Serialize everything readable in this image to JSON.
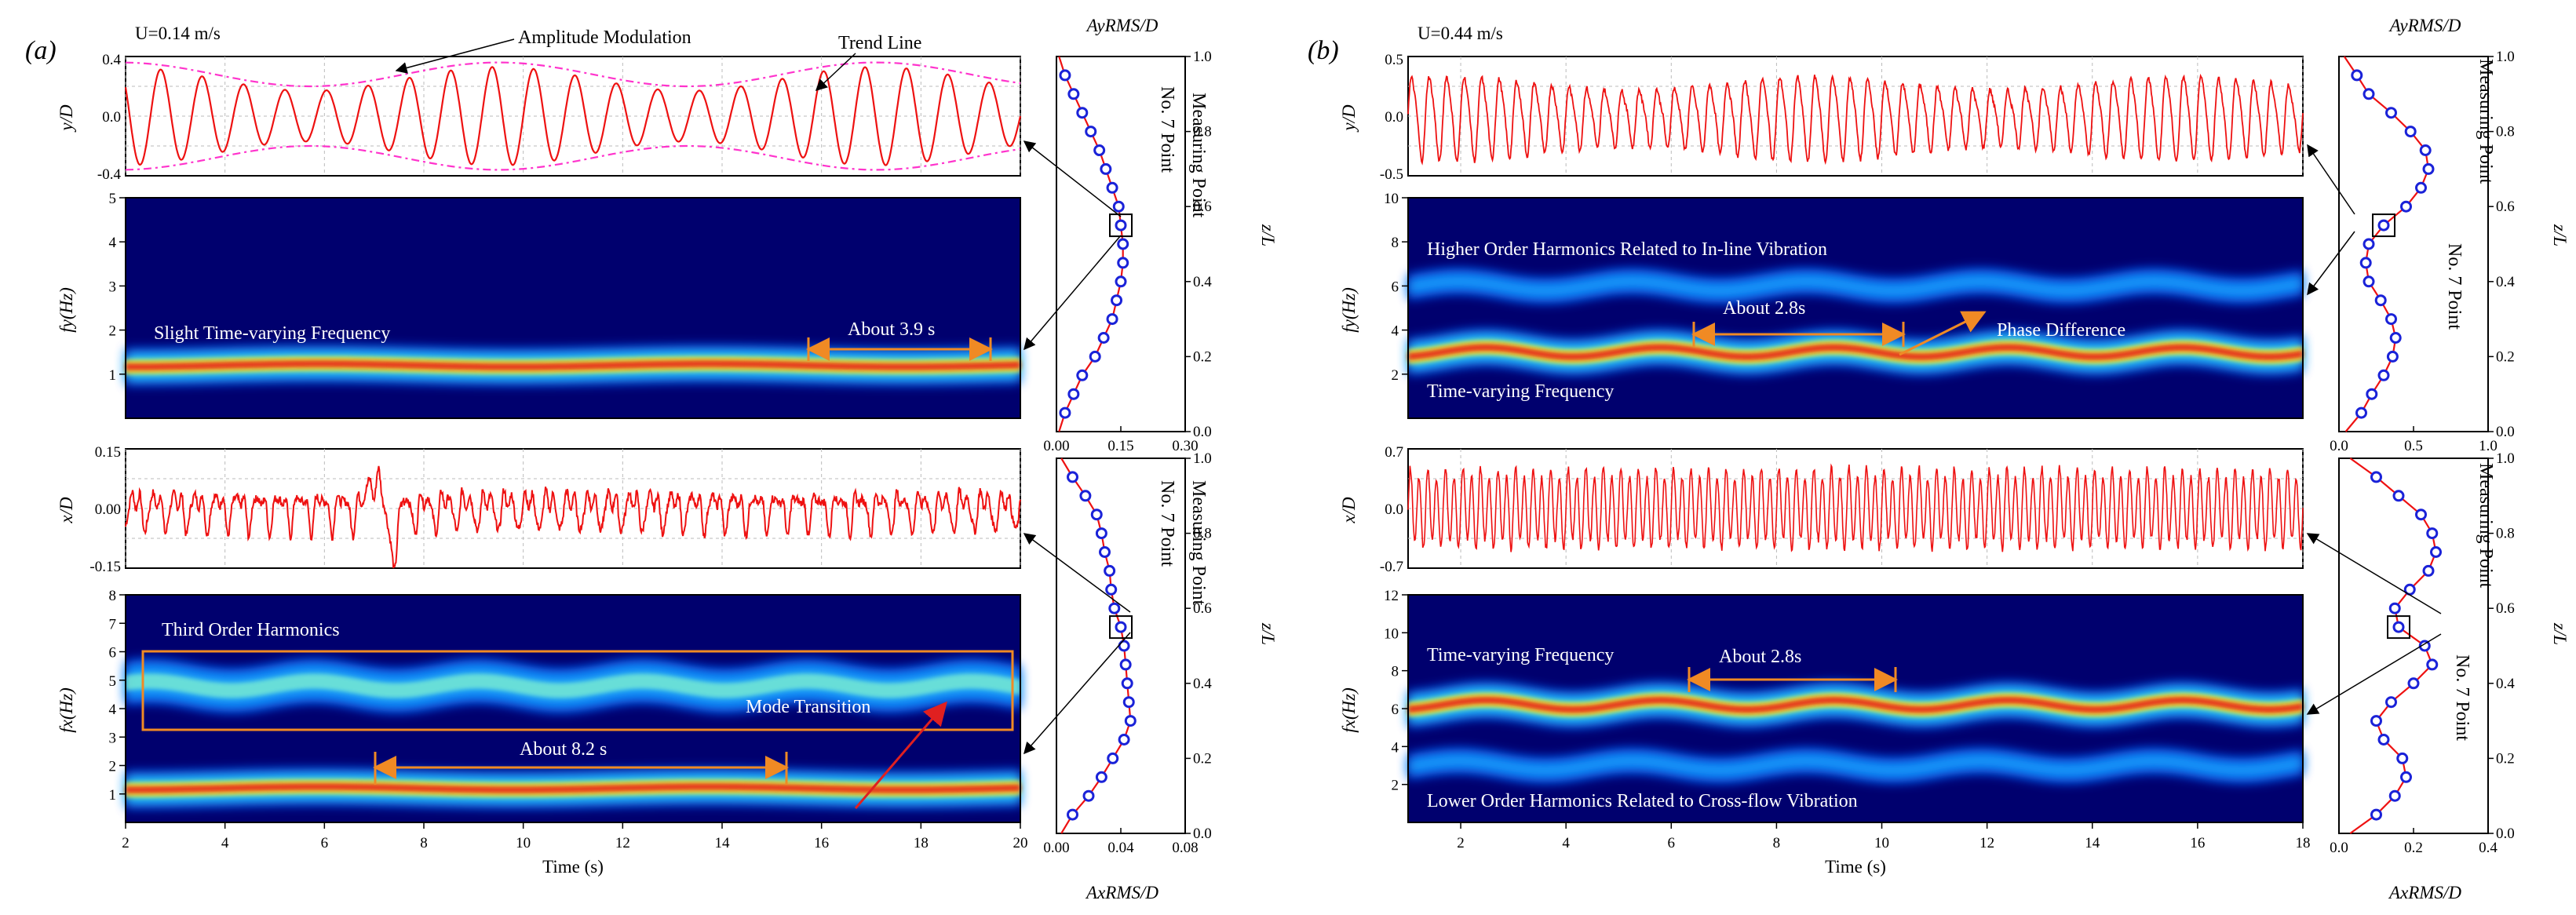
{
  "panels": [
    {
      "label": "(a)",
      "speed": "U=0.14 m/s",
      "time_axis": {
        "label": "Time (s)",
        "min": 2,
        "max": 20,
        "ticks": [
          2,
          4,
          6,
          8,
          10,
          12,
          14,
          16,
          18,
          20
        ]
      },
      "y_signal": {
        "ylabel": "y/D",
        "ylim": [
          -0.4,
          0.4
        ],
        "ticks": [
          "-0.4",
          "0.0",
          "0.4"
        ],
        "freq_hz": 1.2,
        "envelope_min": 0.17,
        "envelope_max": 0.33,
        "envelope_period_s": 7.6
      },
      "fy_map": {
        "ylabel": "fy(Hz)",
        "ylim": [
          0,
          5
        ],
        "ticks": [
          1,
          2,
          3,
          4,
          5
        ],
        "ridges": [
          {
            "freq_hz": 1.2,
            "intensity": "high",
            "time_varying": "slight"
          }
        ]
      },
      "x_signal": {
        "ylabel": "x/D",
        "ylim": [
          -0.15,
          0.15
        ],
        "ticks": [
          "-0.15",
          "0.00",
          "0.15"
        ]
      },
      "fx_map": {
        "ylabel": "fx(Hz)",
        "ylim": [
          0,
          8
        ],
        "ticks": [
          1,
          2,
          3,
          4,
          5,
          6,
          7,
          8
        ],
        "ridges": [
          {
            "freq_hz": 4.8,
            "intensity": "medium",
            "note": "third order harmonics"
          },
          {
            "freq_hz": 1.2,
            "intensity": "high"
          }
        ]
      },
      "profile_y": {
        "title": "AyRMS/D",
        "xlim": [
          0,
          0.3
        ],
        "xticks": [
          "0.00",
          "0.15",
          "0.30"
        ],
        "zlim": [
          0,
          1
        ],
        "zticks": [
          "0.0",
          "0.2",
          "0.4",
          "0.6",
          "0.8",
          "1.0"
        ],
        "zlabel": "z/L",
        "legend": "Measuring Point",
        "point_label": "No. 7 Point",
        "z": [
          0.05,
          0.1,
          0.15,
          0.2,
          0.25,
          0.3,
          0.35,
          0.4,
          0.45,
          0.5,
          0.55,
          0.6,
          0.65,
          0.7,
          0.75,
          0.8,
          0.85,
          0.9,
          0.95
        ],
        "values": [
          0.02,
          0.04,
          0.06,
          0.09,
          0.11,
          0.13,
          0.14,
          0.15,
          0.155,
          0.155,
          0.15,
          0.145,
          0.13,
          0.115,
          0.1,
          0.08,
          0.06,
          0.04,
          0.02
        ]
      },
      "profile_x": {
        "title": "AxRMS/D",
        "xlim": [
          0,
          0.08
        ],
        "xticks": [
          "0.00",
          "0.04",
          "0.08"
        ],
        "zlim": [
          0,
          1
        ],
        "zticks": [
          "0.0",
          "0.2",
          "0.4",
          "0.6",
          "0.8",
          "1.0"
        ],
        "zlabel": "z/L",
        "legend": "Measuring Point",
        "point_label": "No. 7 Point",
        "z": [
          0.05,
          0.1,
          0.15,
          0.2,
          0.25,
          0.3,
          0.35,
          0.4,
          0.45,
          0.5,
          0.55,
          0.6,
          0.65,
          0.7,
          0.75,
          0.8,
          0.85,
          0.9,
          0.95
        ],
        "values": [
          0.01,
          0.02,
          0.028,
          0.035,
          0.042,
          0.046,
          0.045,
          0.044,
          0.043,
          0.042,
          0.04,
          0.036,
          0.034,
          0.033,
          0.03,
          0.028,
          0.025,
          0.018,
          0.01
        ]
      },
      "annotations": {
        "amplitude_modulation": "Amplitude Modulation",
        "trend_line": "Trend Line",
        "slight_tv": "Slight Time-varying Frequency",
        "about_39": "About 3.9 s",
        "third_order": "Third Order Harmonics",
        "mode_transition": "Mode Transition",
        "about_82": "About 8.2 s"
      }
    },
    {
      "label": "(b)",
      "speed": "U=0.44 m/s",
      "time_axis": {
        "label": "Time (s)",
        "min": 1,
        "max": 18,
        "ticks": [
          2,
          4,
          6,
          8,
          10,
          12,
          14,
          16,
          18
        ]
      },
      "y_signal": {
        "ylabel": "y/D",
        "ylim": [
          -0.5,
          0.5
        ],
        "ticks": [
          "-0.5",
          "0.0",
          "0.5"
        ],
        "freq_hz": 3.0
      },
      "fy_map": {
        "ylabel": "fy(Hz)",
        "ylim": [
          0,
          10
        ],
        "ticks": [
          2,
          4,
          6,
          8,
          10
        ],
        "ridges": [
          {
            "freq_hz": 3.0,
            "intensity": "high",
            "time_varying": "yes"
          },
          {
            "freq_hz": 6.0,
            "intensity": "low"
          }
        ]
      },
      "x_signal": {
        "ylabel": "x/D",
        "ylim": [
          -0.7,
          0.7
        ],
        "ticks": [
          "-0.7",
          "0.0",
          "0.7"
        ],
        "freq_hz": 6.0
      },
      "fx_map": {
        "ylabel": "fx(Hz)",
        "ylim": [
          0,
          12
        ],
        "ticks": [
          2,
          4,
          6,
          8,
          10,
          12
        ],
        "ridges": [
          {
            "freq_hz": 6.2,
            "intensity": "high"
          },
          {
            "freq_hz": 3.0,
            "intensity": "low"
          }
        ]
      },
      "profile_y": {
        "title": "AyRMS/D",
        "xlim": [
          0,
          1.0
        ],
        "xticks": [
          "0.0",
          "0.5",
          "1.0"
        ],
        "zlim": [
          0,
          1
        ],
        "zticks": [
          "0.0",
          "0.2",
          "0.4",
          "0.6",
          "0.8",
          "1.0"
        ],
        "zlabel": "z/L",
        "legend": "Measuring Point",
        "point_label": "No. 7 Point",
        "z": [
          0.05,
          0.1,
          0.15,
          0.2,
          0.25,
          0.3,
          0.35,
          0.4,
          0.45,
          0.5,
          0.55,
          0.6,
          0.65,
          0.7,
          0.75,
          0.8,
          0.85,
          0.9,
          0.95
        ],
        "values": [
          0.15,
          0.22,
          0.3,
          0.36,
          0.38,
          0.35,
          0.28,
          0.2,
          0.18,
          0.2,
          0.3,
          0.45,
          0.55,
          0.6,
          0.58,
          0.48,
          0.35,
          0.2,
          0.12
        ]
      },
      "profile_x": {
        "title": "AxRMS/D",
        "xlim": [
          0,
          0.4
        ],
        "xticks": [
          "0.0",
          "0.2",
          "0.4"
        ],
        "zlim": [
          0,
          1
        ],
        "zticks": [
          "0.0",
          "0.2",
          "0.4",
          "0.6",
          "0.8",
          "1.0"
        ],
        "zlabel": "z/L",
        "legend": "Measuring Point",
        "point_label": "No. 7 Point",
        "z": [
          0.05,
          0.1,
          0.15,
          0.2,
          0.25,
          0.3,
          0.35,
          0.4,
          0.45,
          0.5,
          0.55,
          0.6,
          0.65,
          0.7,
          0.75,
          0.8,
          0.85,
          0.9,
          0.95
        ],
        "values": [
          0.1,
          0.15,
          0.18,
          0.17,
          0.12,
          0.1,
          0.14,
          0.2,
          0.25,
          0.23,
          0.16,
          0.15,
          0.19,
          0.24,
          0.26,
          0.25,
          0.22,
          0.16,
          0.1
        ]
      },
      "annotations": {
        "higher_order": "Higher Order Harmonics Related to In-line Vibration",
        "about_28a": "About 2.8s",
        "phase_diff": "Phase Difference",
        "tv_freq": "Time-varying Frequency",
        "tv_freq2": "Time-varying Frequency",
        "about_28b": "About 2.8s",
        "lower_order": "Lower Order Harmonics Related to Cross-flow Vibration"
      }
    }
  ],
  "chart_data": [
    {
      "type": "line",
      "title": "",
      "xlabel": "Time (s)",
      "ylabel": "y/D",
      "xlim": [
        2,
        20
      ],
      "ylim": [
        -0.4,
        0.4
      ],
      "series": [
        {
          "name": "",
          "note": "sinusoid ~1.2 Hz with amplitude modulation 0.17-0.33"
        }
      ]
    },
    {
      "type": "heatmap",
      "xlabel": "Time (s)",
      "ylabel": "fy(Hz)",
      "xlim": [
        2,
        20
      ],
      "ylim": [
        0,
        5
      ],
      "ridges_hz": [
        1.2
      ]
    },
    {
      "type": "line",
      "xlabel": "Time (s)",
      "ylabel": "x/D",
      "xlim": [
        2,
        20
      ],
      "ylim": [
        -0.15,
        0.15
      ]
    },
    {
      "type": "heatmap",
      "xlabel": "Time (s)",
      "ylabel": "fx(Hz)",
      "xlim": [
        2,
        20
      ],
      "ylim": [
        0,
        8
      ],
      "ridges_hz": [
        4.8,
        1.2
      ]
    },
    {
      "type": "line",
      "xlabel": "Time (s)",
      "ylabel": "y/D",
      "xlim": [
        1,
        18
      ],
      "ylim": [
        -0.5,
        0.5
      ]
    },
    {
      "type": "heatmap",
      "xlabel": "Time (s)",
      "ylabel": "fy(Hz)",
      "xlim": [
        1,
        18
      ],
      "ylim": [
        0,
        10
      ],
      "ridges_hz": [
        3.0,
        6.0
      ]
    },
    {
      "type": "line",
      "xlabel": "Time (s)",
      "ylabel": "x/D",
      "xlim": [
        1,
        18
      ],
      "ylim": [
        -0.7,
        0.7
      ]
    },
    {
      "type": "heatmap",
      "xlabel": "Time (s)",
      "ylabel": "fx(Hz)",
      "xlim": [
        1,
        18
      ],
      "ylim": [
        0,
        12
      ],
      "ridges_hz": [
        6.2,
        3.0
      ]
    }
  ]
}
